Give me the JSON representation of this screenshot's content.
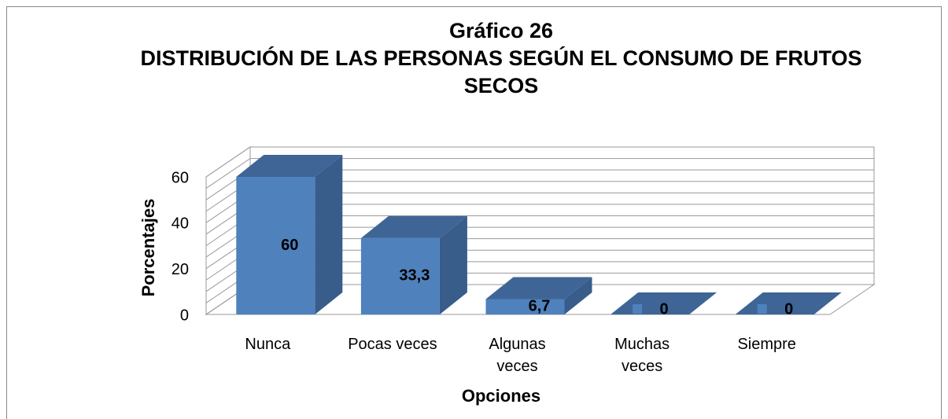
{
  "chart_data": {
    "type": "bar3d",
    "title": "Gráfico 26",
    "subtitle": "DISTRIBUCIÓN DE LAS PERSONAS SEGÚN EL CONSUMO DE FRUTOS SECOS",
    "x_label": "Opciones",
    "y_label": "Porcentajes",
    "categories": [
      "Nunca",
      "Pocas veces",
      "Algunas veces",
      "Muchas veces",
      "Siempre"
    ],
    "values": [
      60,
      33.3,
      6.7,
      0,
      0
    ],
    "value_labels": [
      "60",
      "33,3",
      "6,7",
      "0",
      "0"
    ],
    "color": "#4f81bd",
    "ylim": [
      0,
      60
    ],
    "yticks": [
      0,
      20,
      40,
      60
    ],
    "minor_yticks": [
      5,
      10,
      15,
      25,
      30,
      35,
      45,
      50,
      55
    ],
    "grid": true
  }
}
